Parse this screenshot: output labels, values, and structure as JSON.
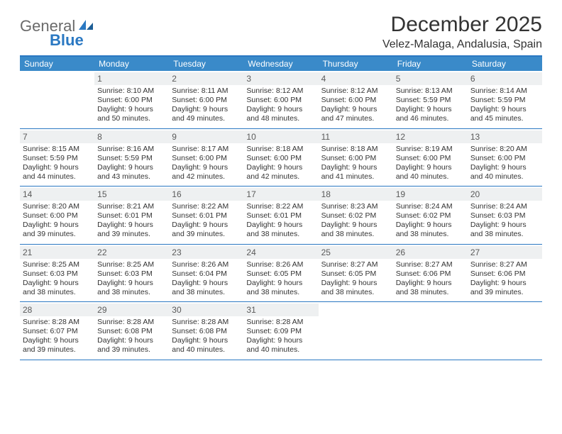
{
  "logo": {
    "general": "General",
    "blue": "Blue"
  },
  "title": "December 2025",
  "location": "Velez-Malaga, Andalusia, Spain",
  "colors": {
    "header_bg": "#3a8ac9",
    "border": "#2a78c2",
    "daynum_bg": "#eef0f1",
    "text": "#333333"
  },
  "dow": [
    "Sunday",
    "Monday",
    "Tuesday",
    "Wednesday",
    "Thursday",
    "Friday",
    "Saturday"
  ],
  "weeks": [
    [
      {
        "n": "",
        "sr": "",
        "ss": "",
        "dl": ""
      },
      {
        "n": "1",
        "sr": "Sunrise: 8:10 AM",
        "ss": "Sunset: 6:00 PM",
        "dl": "Daylight: 9 hours and 50 minutes."
      },
      {
        "n": "2",
        "sr": "Sunrise: 8:11 AM",
        "ss": "Sunset: 6:00 PM",
        "dl": "Daylight: 9 hours and 49 minutes."
      },
      {
        "n": "3",
        "sr": "Sunrise: 8:12 AM",
        "ss": "Sunset: 6:00 PM",
        "dl": "Daylight: 9 hours and 48 minutes."
      },
      {
        "n": "4",
        "sr": "Sunrise: 8:12 AM",
        "ss": "Sunset: 6:00 PM",
        "dl": "Daylight: 9 hours and 47 minutes."
      },
      {
        "n": "5",
        "sr": "Sunrise: 8:13 AM",
        "ss": "Sunset: 5:59 PM",
        "dl": "Daylight: 9 hours and 46 minutes."
      },
      {
        "n": "6",
        "sr": "Sunrise: 8:14 AM",
        "ss": "Sunset: 5:59 PM",
        "dl": "Daylight: 9 hours and 45 minutes."
      }
    ],
    [
      {
        "n": "7",
        "sr": "Sunrise: 8:15 AM",
        "ss": "Sunset: 5:59 PM",
        "dl": "Daylight: 9 hours and 44 minutes."
      },
      {
        "n": "8",
        "sr": "Sunrise: 8:16 AM",
        "ss": "Sunset: 5:59 PM",
        "dl": "Daylight: 9 hours and 43 minutes."
      },
      {
        "n": "9",
        "sr": "Sunrise: 8:17 AM",
        "ss": "Sunset: 6:00 PM",
        "dl": "Daylight: 9 hours and 42 minutes."
      },
      {
        "n": "10",
        "sr": "Sunrise: 8:18 AM",
        "ss": "Sunset: 6:00 PM",
        "dl": "Daylight: 9 hours and 42 minutes."
      },
      {
        "n": "11",
        "sr": "Sunrise: 8:18 AM",
        "ss": "Sunset: 6:00 PM",
        "dl": "Daylight: 9 hours and 41 minutes."
      },
      {
        "n": "12",
        "sr": "Sunrise: 8:19 AM",
        "ss": "Sunset: 6:00 PM",
        "dl": "Daylight: 9 hours and 40 minutes."
      },
      {
        "n": "13",
        "sr": "Sunrise: 8:20 AM",
        "ss": "Sunset: 6:00 PM",
        "dl": "Daylight: 9 hours and 40 minutes."
      }
    ],
    [
      {
        "n": "14",
        "sr": "Sunrise: 8:20 AM",
        "ss": "Sunset: 6:00 PM",
        "dl": "Daylight: 9 hours and 39 minutes."
      },
      {
        "n": "15",
        "sr": "Sunrise: 8:21 AM",
        "ss": "Sunset: 6:01 PM",
        "dl": "Daylight: 9 hours and 39 minutes."
      },
      {
        "n": "16",
        "sr": "Sunrise: 8:22 AM",
        "ss": "Sunset: 6:01 PM",
        "dl": "Daylight: 9 hours and 39 minutes."
      },
      {
        "n": "17",
        "sr": "Sunrise: 8:22 AM",
        "ss": "Sunset: 6:01 PM",
        "dl": "Daylight: 9 hours and 38 minutes."
      },
      {
        "n": "18",
        "sr": "Sunrise: 8:23 AM",
        "ss": "Sunset: 6:02 PM",
        "dl": "Daylight: 9 hours and 38 minutes."
      },
      {
        "n": "19",
        "sr": "Sunrise: 8:24 AM",
        "ss": "Sunset: 6:02 PM",
        "dl": "Daylight: 9 hours and 38 minutes."
      },
      {
        "n": "20",
        "sr": "Sunrise: 8:24 AM",
        "ss": "Sunset: 6:03 PM",
        "dl": "Daylight: 9 hours and 38 minutes."
      }
    ],
    [
      {
        "n": "21",
        "sr": "Sunrise: 8:25 AM",
        "ss": "Sunset: 6:03 PM",
        "dl": "Daylight: 9 hours and 38 minutes."
      },
      {
        "n": "22",
        "sr": "Sunrise: 8:25 AM",
        "ss": "Sunset: 6:03 PM",
        "dl": "Daylight: 9 hours and 38 minutes."
      },
      {
        "n": "23",
        "sr": "Sunrise: 8:26 AM",
        "ss": "Sunset: 6:04 PM",
        "dl": "Daylight: 9 hours and 38 minutes."
      },
      {
        "n": "24",
        "sr": "Sunrise: 8:26 AM",
        "ss": "Sunset: 6:05 PM",
        "dl": "Daylight: 9 hours and 38 minutes."
      },
      {
        "n": "25",
        "sr": "Sunrise: 8:27 AM",
        "ss": "Sunset: 6:05 PM",
        "dl": "Daylight: 9 hours and 38 minutes."
      },
      {
        "n": "26",
        "sr": "Sunrise: 8:27 AM",
        "ss": "Sunset: 6:06 PM",
        "dl": "Daylight: 9 hours and 38 minutes."
      },
      {
        "n": "27",
        "sr": "Sunrise: 8:27 AM",
        "ss": "Sunset: 6:06 PM",
        "dl": "Daylight: 9 hours and 39 minutes."
      }
    ],
    [
      {
        "n": "28",
        "sr": "Sunrise: 8:28 AM",
        "ss": "Sunset: 6:07 PM",
        "dl": "Daylight: 9 hours and 39 minutes."
      },
      {
        "n": "29",
        "sr": "Sunrise: 8:28 AM",
        "ss": "Sunset: 6:08 PM",
        "dl": "Daylight: 9 hours and 39 minutes."
      },
      {
        "n": "30",
        "sr": "Sunrise: 8:28 AM",
        "ss": "Sunset: 6:08 PM",
        "dl": "Daylight: 9 hours and 40 minutes."
      },
      {
        "n": "31",
        "sr": "Sunrise: 8:28 AM",
        "ss": "Sunset: 6:09 PM",
        "dl": "Daylight: 9 hours and 40 minutes."
      },
      {
        "n": "",
        "sr": "",
        "ss": "",
        "dl": ""
      },
      {
        "n": "",
        "sr": "",
        "ss": "",
        "dl": ""
      },
      {
        "n": "",
        "sr": "",
        "ss": "",
        "dl": ""
      }
    ]
  ]
}
